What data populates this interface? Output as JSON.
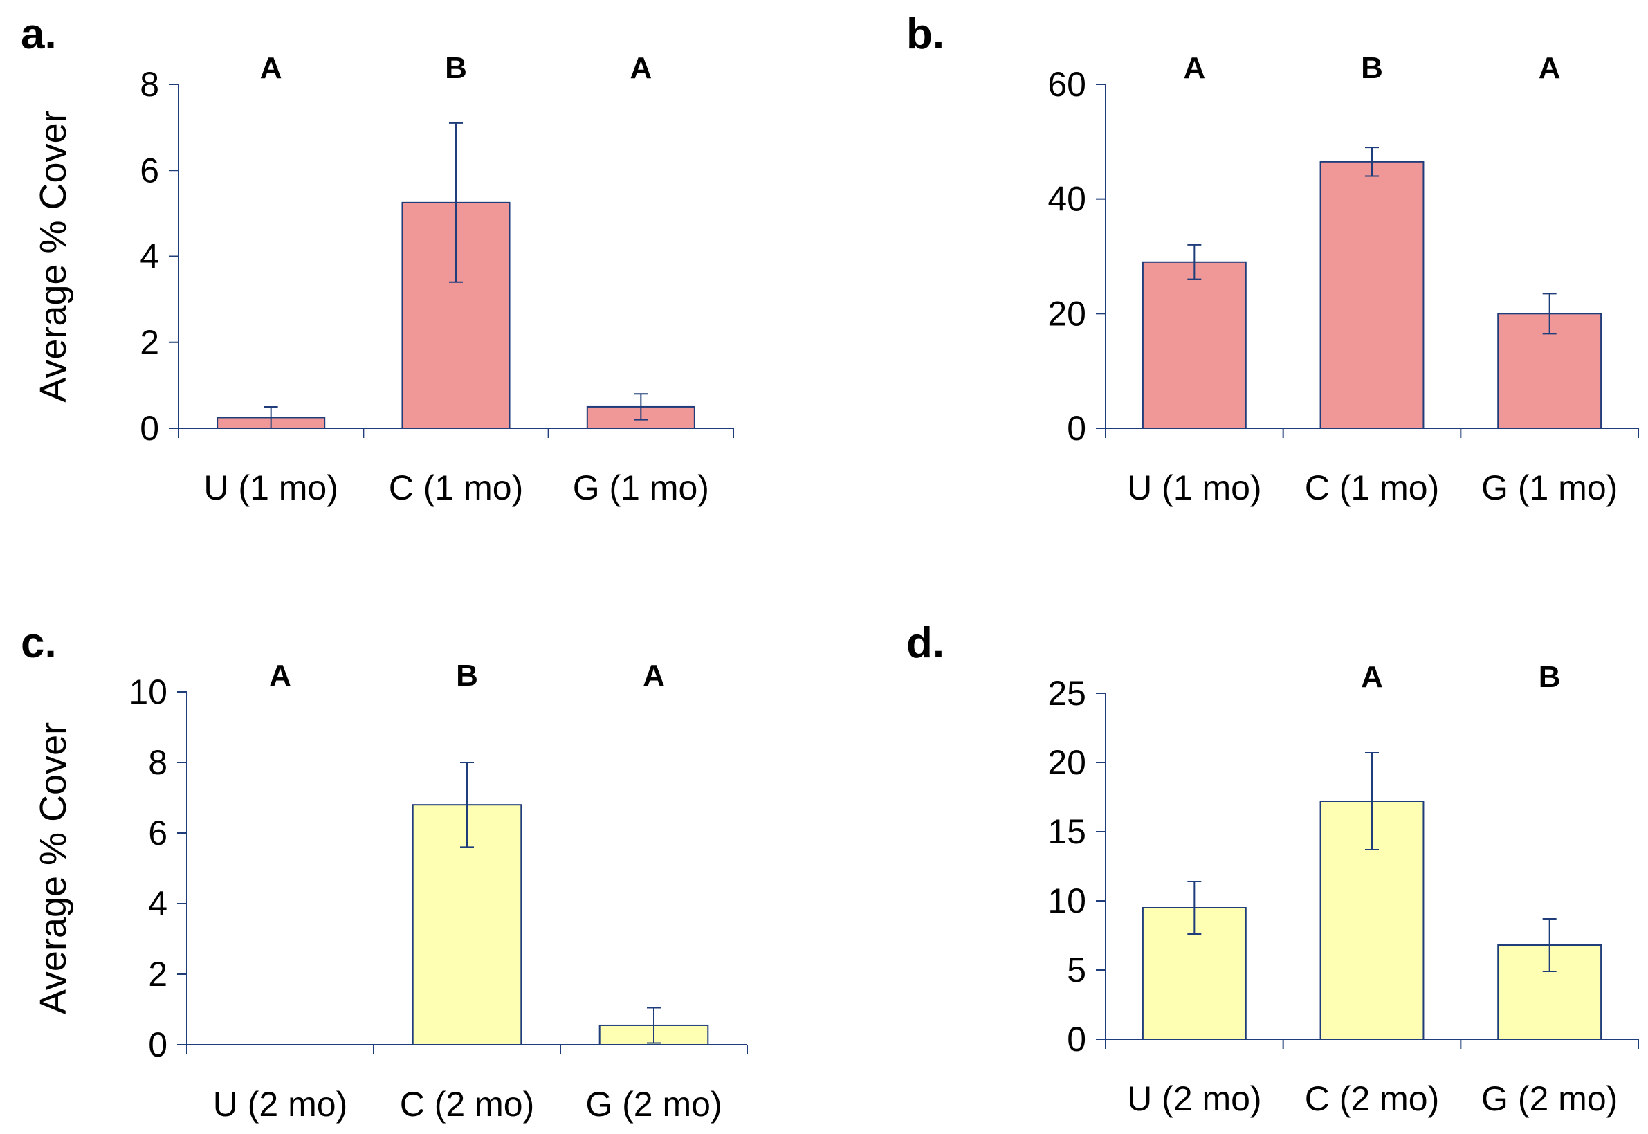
{
  "chart_data": [
    {
      "panel": "a.",
      "type": "bar",
      "ylabel": "Average % Cover",
      "xlabel": "",
      "ylim": [
        0,
        8
      ],
      "yticks": [
        0,
        2,
        4,
        6,
        8
      ],
      "categories": [
        "U (1 mo)",
        "C (1 mo)",
        "G (1 mo)"
      ],
      "values": [
        0.25,
        5.25,
        0.5
      ],
      "errors": [
        0.25,
        1.85,
        0.3
      ],
      "significance": [
        "A",
        "B",
        "A"
      ],
      "color": "#f09898"
    },
    {
      "panel": "b.",
      "type": "bar",
      "ylabel": "",
      "xlabel": "",
      "ylim": [
        0,
        60
      ],
      "yticks": [
        0,
        20,
        40,
        60
      ],
      "categories": [
        "U (1 mo)",
        "C (1 mo)",
        "G (1 mo)"
      ],
      "values": [
        29,
        46.5,
        20
      ],
      "errors": [
        3,
        2.5,
        3.5
      ],
      "significance": [
        "A",
        "B",
        "A"
      ],
      "color": "#f09898"
    },
    {
      "panel": "c.",
      "type": "bar",
      "ylabel": "Average % Cover",
      "xlabel": "",
      "ylim": [
        0,
        10
      ],
      "yticks": [
        0,
        2,
        4,
        6,
        8,
        10
      ],
      "categories": [
        "U (2 mo)",
        "C (2 mo)",
        "G (2 mo)"
      ],
      "values": [
        0,
        6.8,
        0.55
      ],
      "errors": [
        0,
        1.2,
        0.5
      ],
      "significance": [
        "A",
        "B",
        "A"
      ],
      "color": "#ffffb3"
    },
    {
      "panel": "d.",
      "type": "bar",
      "ylabel": "",
      "xlabel": "",
      "ylim": [
        0,
        25
      ],
      "yticks": [
        0,
        5,
        10,
        15,
        20,
        25
      ],
      "categories": [
        "U (2 mo)",
        "C (2 mo)",
        "G (2 mo)"
      ],
      "values": [
        9.5,
        17.2,
        6.8
      ],
      "errors": [
        1.9,
        3.5,
        1.9
      ],
      "significance": [
        "",
        "A",
        "B"
      ],
      "color": "#ffffb3"
    }
  ],
  "style": {
    "axis_color": "#1f3d7a",
    "bar_edge_color": "#1f3d7a",
    "error_color": "#1f3d7a",
    "text_color": "#000000"
  }
}
